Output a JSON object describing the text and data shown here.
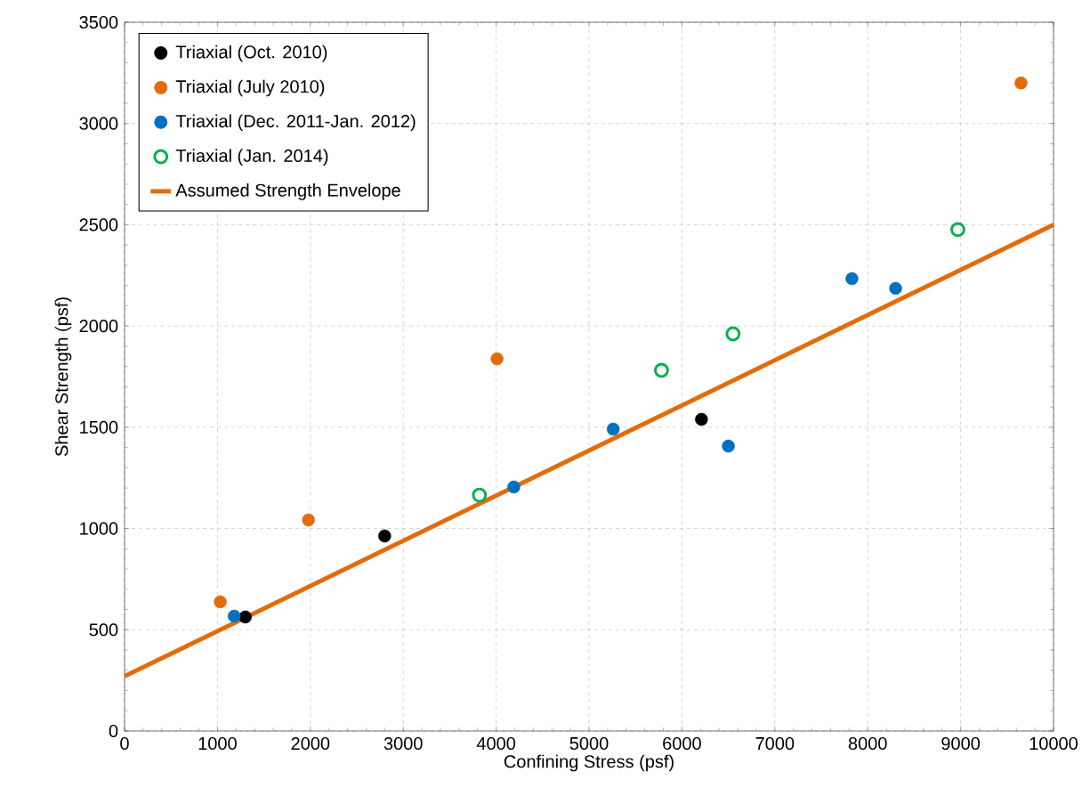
{
  "chart_data": {
    "type": "scatter",
    "xlabel": "Confining Stress (psf)",
    "ylabel": "Shear Strength (psf)",
    "xlim": [
      0,
      10000
    ],
    "ylim": [
      0,
      3500
    ],
    "xticks": [
      0,
      1000,
      2000,
      3000,
      4000,
      5000,
      6000,
      7000,
      8000,
      9000,
      10000
    ],
    "yticks": [
      0,
      500,
      1000,
      1500,
      2000,
      2500,
      3000,
      3500
    ],
    "grid": true,
    "legend": "top left",
    "series": [
      {
        "name": "Triaxial (Oct. 2010)",
        "color": "#000000",
        "marker": "circle",
        "x": [
          1300,
          2800,
          6210
        ],
        "values": [
          563,
          963,
          1539
        ]
      },
      {
        "name": "Triaxial (July 2010)",
        "color": "#e36c0a",
        "marker": "circle",
        "x": [
          1030,
          1980,
          4010,
          9650
        ],
        "values": [
          638,
          1042,
          1838,
          3200
        ]
      },
      {
        "name": "Triaxial (Dec. 2011-Jan. 2012)",
        "color": "#0070c0",
        "marker": "circle",
        "x": [
          1180,
          4190,
          5260,
          6500,
          7830,
          8300
        ],
        "values": [
          567,
          1205,
          1491,
          1407,
          2234,
          2186
        ]
      },
      {
        "name": "Triaxial (Jan. 2014)",
        "color": "#00b050",
        "marker": "open circle",
        "x": [
          3820,
          5780,
          6550,
          8970
        ],
        "values": [
          1165,
          1781,
          1961,
          2476
        ]
      },
      {
        "name": "Assumed Strength Envelope",
        "type": "line",
        "marker": "none",
        "color": "#e36c0a",
        "x": [
          0,
          10000
        ],
        "values": [
          270,
          2500
        ]
      }
    ]
  }
}
